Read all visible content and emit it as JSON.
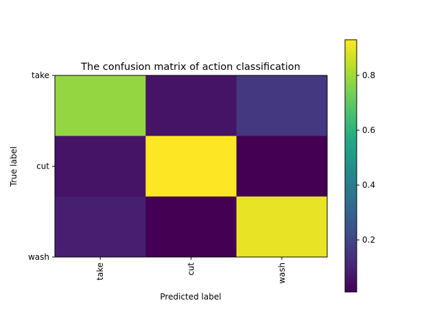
{
  "chart_data": {
    "type": "heatmap",
    "title": "The confusion matrix of action classification",
    "xlabel": "Predicted label",
    "ylabel": "True label",
    "x_categories": [
      "take",
      "cut",
      "wash"
    ],
    "y_categories": [
      "take",
      "cut",
      "wash"
    ],
    "values": [
      [
        0.78,
        0.06,
        0.16
      ],
      [
        0.06,
        0.93,
        0.01
      ],
      [
        0.09,
        0.01,
        0.9
      ]
    ],
    "colormap": "viridis",
    "color_range": [
      0.01,
      0.93
    ],
    "colorbar_ticks": [
      0.2,
      0.4,
      0.6,
      0.8
    ],
    "colorbar_tick_labels": [
      "0.2",
      "0.4",
      "0.6",
      "0.8"
    ],
    "x_tick_rotation": "vertical",
    "grid": false
  }
}
